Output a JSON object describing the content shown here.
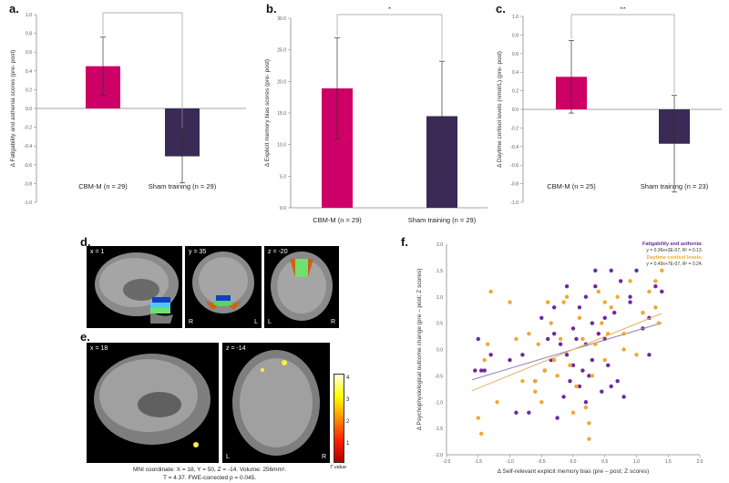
{
  "panels": {
    "a": "a.",
    "b": "b.",
    "c": "c.",
    "d": "d.",
    "e": "e.",
    "f": "f."
  },
  "colors": {
    "cbm_bar": "#cc0066",
    "sham_bar": "#3a2a55",
    "fatigue_points": "#6a2aa0",
    "cortisol_points": "#f0a830",
    "fatigue_line": "#9080b0",
    "cortisol_line": "#e8b060",
    "axis": "#888888"
  },
  "brain": {
    "d_labels": [
      "x = 1",
      "y = 35",
      "z = -20"
    ],
    "d_orient": {
      "y_left": "R",
      "y_right": "L",
      "z_left": "L",
      "z_right": "R"
    },
    "e_labels": [
      "x = 18",
      "z = -14"
    ],
    "e_orient": {
      "left": "L",
      "right": "R"
    },
    "colorbar_ticks": [
      "4",
      "3",
      "2",
      "1"
    ],
    "colorbar_label": "T value",
    "caption_line1": "MNI coordinate: X = 18, Y = 50, Z = -14. Volume: 256mm³.",
    "caption_line2": "T = 4.37. FWE-corrected p = 0.045."
  },
  "chart_data": [
    {
      "id": "a",
      "type": "bar",
      "categories": [
        "CBM-M (n = 29)",
        "Sham training (n = 29)"
      ],
      "values": [
        0.45,
        -0.51
      ],
      "error": [
        0.31,
        0.28
      ],
      "ylabel": "Δ Fatigability and asthenia scores (pre- post)",
      "ylim": [
        -1.0,
        1.0
      ],
      "yticks": [
        "1.0",
        "0.8",
        "0.6",
        "0.4",
        "0.2",
        "0.0",
        "-0.2",
        "-0.4",
        "-0.6",
        "-0.8",
        "-1.0"
      ],
      "significance": "*"
    },
    {
      "id": "b",
      "type": "bar",
      "categories": [
        "CBM-M (n = 29)",
        "Sham training (n = 29)"
      ],
      "values": [
        18.9,
        14.5
      ],
      "error": [
        8.0,
        8.7
      ],
      "ylabel": "Δ Explicit memory bias scores (pre- post)",
      "ylim": [
        0,
        30
      ],
      "yticks": [
        "30.0",
        "25.0",
        "20.0",
        "15.0",
        "10.0",
        "5.0",
        "0.0"
      ],
      "significance": "*"
    },
    {
      "id": "c",
      "type": "bar",
      "categories": [
        "CBM-M (n = 25)",
        "Sham training (n = 23)"
      ],
      "values": [
        0.35,
        -0.37
      ],
      "error": [
        0.39,
        0.52
      ],
      "ylabel": "Δ Daytime cortisol levels (nmol/L) (pre- post)",
      "ylim": [
        -1.0,
        1.0
      ],
      "yticks": [
        "1.0",
        "0.8",
        "0.6",
        "0.4",
        "0.2",
        "0.0",
        "-0.2",
        "-0.4",
        "-0.6",
        "-0.8",
        "-1.0"
      ],
      "significance": "**"
    },
    {
      "id": "f",
      "type": "scatter",
      "xlabel": "Δ Self-relevant explicit memory bias (pre – post;  Z scores)",
      "ylabel": "Δ Psychophysiological outcome change (pre – post; Z scores)",
      "xlim": [
        -2.0,
        2.0
      ],
      "ylim": [
        -2.0,
        2.0
      ],
      "xticks": [
        "-2.0",
        "-1.5",
        "-1.0",
        "-0.5",
        "0.0",
        "0.5",
        "1.0",
        "1.5",
        "2.0"
      ],
      "yticks": [
        "2.0",
        "1.5",
        "1.0",
        "0.5",
        "0.0",
        "-0.5",
        "-1.0",
        "-1.5",
        "-2.0"
      ],
      "legend_position": "top-right",
      "series": [
        {
          "name": "Fatigability and asthenia:",
          "equation": "y = 0.36x+3E-07, R² = 0.13.",
          "slope": 0.36,
          "intercept": 0.0,
          "x": [
            -1.55,
            -1.5,
            -1.45,
            -1.4,
            -1.3,
            -1.0,
            -0.9,
            -0.8,
            -0.7,
            -0.6,
            -0.5,
            -0.45,
            -0.4,
            -0.35,
            -0.3,
            -0.25,
            -0.2,
            -0.15,
            -0.1,
            -0.05,
            0.0,
            0.0,
            0.05,
            0.1,
            0.1,
            0.15,
            0.2,
            0.2,
            0.25,
            0.3,
            0.3,
            0.35,
            0.4,
            0.45,
            0.5,
            0.55,
            0.6,
            0.65,
            0.7,
            0.75,
            0.8,
            0.9,
            1.0,
            1.1,
            1.2,
            1.3,
            1.4,
            -0.1,
            0.2,
            0.5,
            -0.3,
            0.6,
            0.9,
            1.2,
            0.35
          ],
          "y": [
            -0.4,
            0.2,
            -0.4,
            -0.4,
            -0.1,
            -0.2,
            -1.2,
            -0.1,
            -1.2,
            -0.6,
            0.6,
            -0.4,
            0.2,
            -0.2,
            0.8,
            -1.3,
            0.1,
            -0.9,
            -0.1,
            -0.6,
            0.4,
            -0.3,
            0.2,
            0.8,
            -0.7,
            -0.4,
            1.0,
            0.1,
            -0.5,
            0.5,
            -0.2,
            1.2,
            0.3,
            -0.8,
            0.6,
            -0.3,
            1.5,
            0.7,
            -0.6,
            1.3,
            -0.9,
            0.9,
            1.5,
            0.4,
            -0.1,
            1.2,
            1.1,
            1.2,
            -1.0,
            0.2,
            0.3,
            -0.7,
            1.0,
            0.6,
            1.5
          ]
        },
        {
          "name": "Daytime cortisol levels:",
          "equation": "y = 0.49x+7E-07, R² = 0.24.",
          "slope": 0.49,
          "intercept": 0.0,
          "x": [
            -1.5,
            -1.45,
            -1.4,
            -1.35,
            -1.3,
            -1.2,
            -1.0,
            -0.9,
            -0.8,
            -0.7,
            -0.6,
            -0.55,
            -0.5,
            -0.45,
            -0.4,
            -0.35,
            -0.3,
            -0.25,
            -0.2,
            -0.15,
            -0.1,
            -0.05,
            0.0,
            0.05,
            0.1,
            0.15,
            0.2,
            0.25,
            0.3,
            0.35,
            0.4,
            0.45,
            0.5,
            0.55,
            0.6,
            0.7,
            0.8,
            0.9,
            1.0,
            1.1,
            1.2,
            1.3,
            1.35,
            1.4,
            -0.6,
            0.25,
            0.5,
            0.8,
            1.3
          ],
          "y": [
            -1.3,
            -1.6,
            -0.2,
            0.1,
            1.1,
            -1.0,
            0.9,
            0.2,
            -0.6,
            0.3,
            -0.8,
            0.1,
            -1.0,
            -0.4,
            0.9,
            0.5,
            -0.2,
            -0.5,
            0.2,
            0.9,
            1.0,
            -0.3,
            -1.2,
            -0.7,
            0.6,
            0.2,
            -1.1,
            -1.4,
            -0.5,
            0.1,
            1.1,
            0.5,
            -0.2,
            0.3,
            0.8,
            1.0,
            0.3,
            1.3,
            -0.1,
            0.7,
            1.1,
            1.3,
            0.5,
            1.5,
            -0.6,
            -1.7,
            0.9,
            0.0,
            0.8
          ]
        }
      ]
    }
  ]
}
